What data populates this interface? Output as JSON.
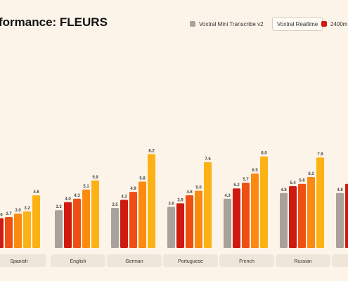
{
  "chart_data": {
    "type": "bar",
    "title": "formance: FLEURS",
    "categories": [
      "Spanish",
      "English",
      "German",
      "Portuguese",
      "French",
      "Russian",
      ""
    ],
    "series": [
      {
        "name": "Voxtral Mini Transcribe v2",
        "color": "#a8a29b",
        "values": [
          null,
          3.3,
          3.5,
          3.6,
          4.3,
          4.8,
          4.8
        ]
      },
      {
        "name": "",
        "color": "#cf1a10",
        "values": [
          2.6,
          4.0,
          4.2,
          3.9,
          5.2,
          5.4,
          null
        ]
      },
      {
        "name": "",
        "color": "#ee4f12",
        "values": [
          2.7,
          4.3,
          4.9,
          4.6,
          5.7,
          5.6,
          null
        ]
      },
      {
        "name": "",
        "color": "#fb8a10",
        "values": [
          3.0,
          5.1,
          5.8,
          5.0,
          6.5,
          6.2,
          null
        ]
      },
      {
        "name": "",
        "color": "#fcb215",
        "values": [
          3.2,
          5.9,
          8.2,
          7.5,
          8.0,
          7.9,
          null
        ]
      },
      {
        "name": "",
        "color": "#fcb215",
        "values": [
          4.6,
          null,
          null,
          null,
          null,
          null,
          null
        ]
      }
    ],
    "legend": [
      {
        "label": "Voxtral Mini Transcribe v2",
        "color": "#a8a29b",
        "boxed": false
      },
      {
        "label": "Voxtral Realtime",
        "color": "",
        "boxed": true
      },
      {
        "label": "2400m",
        "color": "#cf1a10",
        "boxed": false
      }
    ],
    "partial_bars": [
      {
        "category_index": 6,
        "series_index": 1,
        "visible_label": "5"
      }
    ],
    "ylim": [
      0,
      9
    ],
    "grid": false,
    "legend_position": "top-right"
  }
}
